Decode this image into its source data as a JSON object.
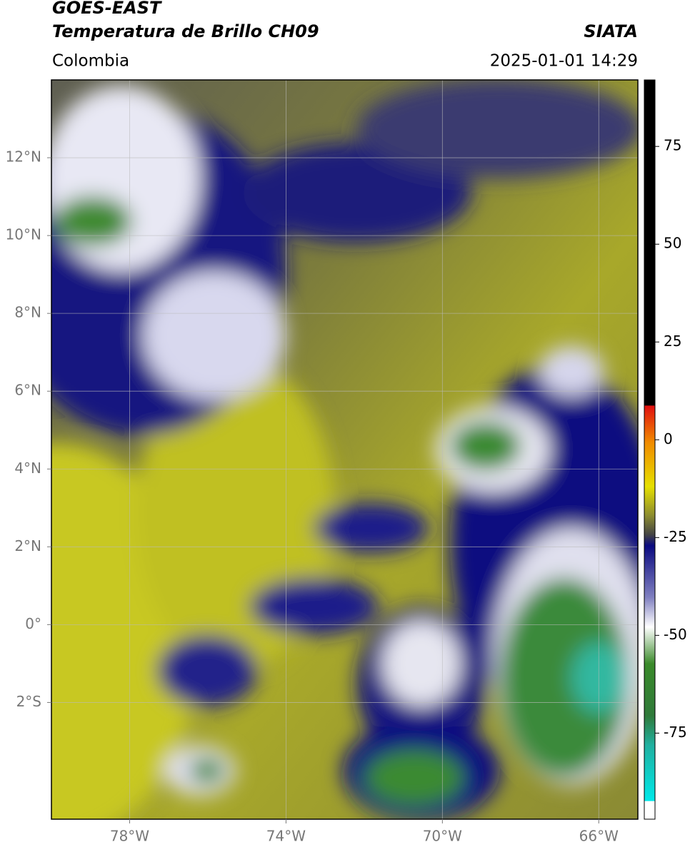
{
  "header": {
    "title": "GOES-EAST",
    "subtitle": "Temperatura de Brillo CH09",
    "source": "SIATA",
    "region": "Colombia",
    "datetime": "2025-01-01 14:29"
  },
  "map": {
    "xlim": [
      -80,
      -65
    ],
    "ylim": [
      -5,
      14
    ],
    "xticks": [
      {
        "value": -78,
        "label": "78°W"
      },
      {
        "value": -74,
        "label": "74°W"
      },
      {
        "value": -70,
        "label": "70°W"
      },
      {
        "value": -66,
        "label": "66°W"
      }
    ],
    "yticks": [
      {
        "value": 12,
        "label": "12°N"
      },
      {
        "value": 10,
        "label": "10°N"
      },
      {
        "value": 8,
        "label": "8°N"
      },
      {
        "value": 6,
        "label": "6°N"
      },
      {
        "value": 4,
        "label": "4°N"
      },
      {
        "value": 2,
        "label": "2°N"
      },
      {
        "value": 0,
        "label": "0°"
      },
      {
        "value": -2,
        "label": "2°S"
      }
    ],
    "grid": true
  },
  "colorbar": {
    "lim": [
      -97,
      92
    ],
    "ticks": [
      75,
      50,
      25,
      0,
      -25,
      -50,
      -75
    ]
  }
}
